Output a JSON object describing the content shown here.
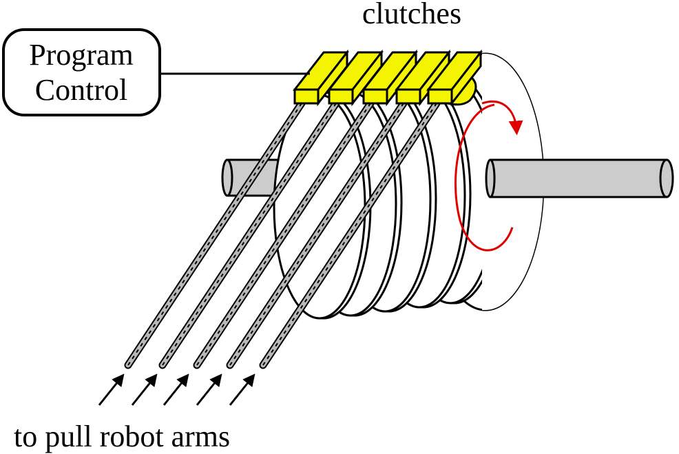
{
  "labels": {
    "top": "clutches",
    "box_line1": "Program",
    "box_line2": "Control",
    "bottom": "to pull robot arms"
  },
  "colors": {
    "clutch": "#f4f400",
    "shaft": "#cccccc",
    "arrow": "#e00000",
    "outline": "#000000",
    "cable": "#b8b8b8"
  },
  "icons": {
    "rotation": "curved-arrow-icon",
    "pull": "arrow-up-right-icon"
  }
}
